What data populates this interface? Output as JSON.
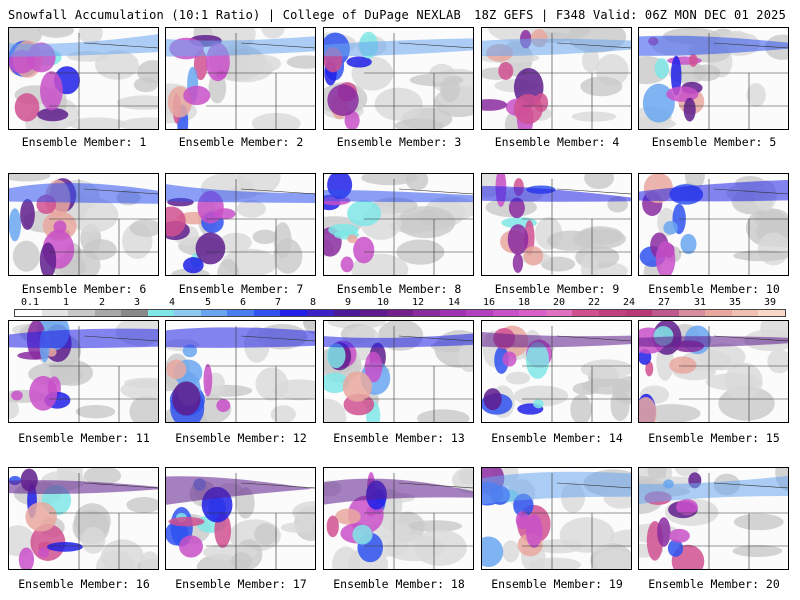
{
  "header": {
    "left": "Snowfall Accumulation (10:1 Ratio) | College of DuPage NEXLAB",
    "right": "18Z GEFS | F348 Valid: 06Z MON DEC 01 2025"
  },
  "member_label_prefix": "Ensemble Member: ",
  "members": [
    {
      "number": "1"
    },
    {
      "number": "2"
    },
    {
      "number": "3"
    },
    {
      "number": "4"
    },
    {
      "number": "5"
    },
    {
      "number": "6"
    },
    {
      "number": "7"
    },
    {
      "number": "8"
    },
    {
      "number": "9"
    },
    {
      "number": "10"
    },
    {
      "number": "11"
    },
    {
      "number": "12"
    },
    {
      "number": "13"
    },
    {
      "number": "14"
    },
    {
      "number": "15"
    },
    {
      "number": "16"
    },
    {
      "number": "17"
    },
    {
      "number": "18"
    },
    {
      "number": "19"
    },
    {
      "number": "20"
    }
  ],
  "colorbar": {
    "labels": [
      "0.1",
      "1",
      "2",
      "3",
      "4",
      "5",
      "6",
      "7",
      "8",
      "9",
      "10",
      "12",
      "14",
      "16",
      "18",
      "20",
      "22",
      "24",
      "27",
      "31",
      "35",
      "39"
    ],
    "colors": [
      "#ffffff",
      "#e4e4e4",
      "#c9c9c9",
      "#a8a8a8",
      "#8a8a8a",
      "#7fe6e6",
      "#8cc8f0",
      "#6aa6f0",
      "#4a7ef0",
      "#2f52f0",
      "#2020e8",
      "#3c20c8",
      "#4a1a98",
      "#5e1c8c",
      "#74208c",
      "#8a2aa0",
      "#a032b4",
      "#b440c0",
      "#c850c8",
      "#d860c8",
      "#e070c0",
      "#d05090",
      "#c04080",
      "#b83878",
      "#c05890",
      "#d88ca0",
      "#e8a8a0",
      "#f0c0b0",
      "#f8d8c8"
    ]
  }
}
